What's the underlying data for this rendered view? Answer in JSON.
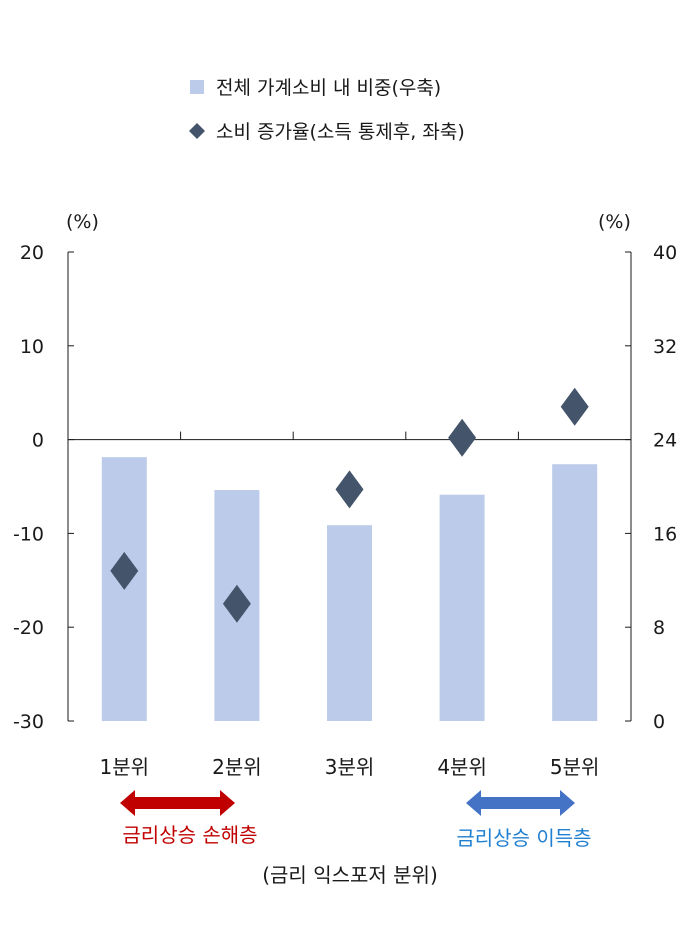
{
  "chart_data": {
    "type": "bar",
    "categories": [
      "1분위",
      "2분위",
      "3분위",
      "4분위",
      "5분위"
    ],
    "series": [
      {
        "name": "전체 가계소비 내 비중(우축)",
        "kind": "bar",
        "axis": "right",
        "color": "#bccbea",
        "values": [
          22.5,
          19.7,
          16.7,
          19.3,
          21.9
        ]
      },
      {
        "name": "소비 증가율(소득 통제후, 좌축)",
        "kind": "marker",
        "marker": "diamond",
        "axis": "left",
        "color": "#44546a",
        "values": [
          -14.0,
          -17.5,
          -5.3,
          0.2,
          3.5
        ]
      }
    ],
    "left_axis": {
      "unit": "(%)",
      "ylim": [
        -30,
        20
      ],
      "ticks": [
        20,
        10,
        0,
        -10,
        -20,
        -30
      ]
    },
    "right_axis": {
      "unit": "(%)",
      "ylim": [
        0,
        40
      ],
      "ticks": [
        40,
        32,
        24,
        16,
        8,
        0
      ]
    },
    "xlabel": "(금리 익스포저 분위)",
    "legend_position": "top-center",
    "grid": false,
    "annotations": [
      {
        "text": "금리상승 손해층",
        "from": "1분위",
        "to": "2분위",
        "color": "#c00000"
      },
      {
        "text": "금리상승 이득층",
        "from": "4분위",
        "to": "5분위",
        "color": "#1f7fd1",
        "arrow_color": "#4472c4"
      }
    ]
  }
}
